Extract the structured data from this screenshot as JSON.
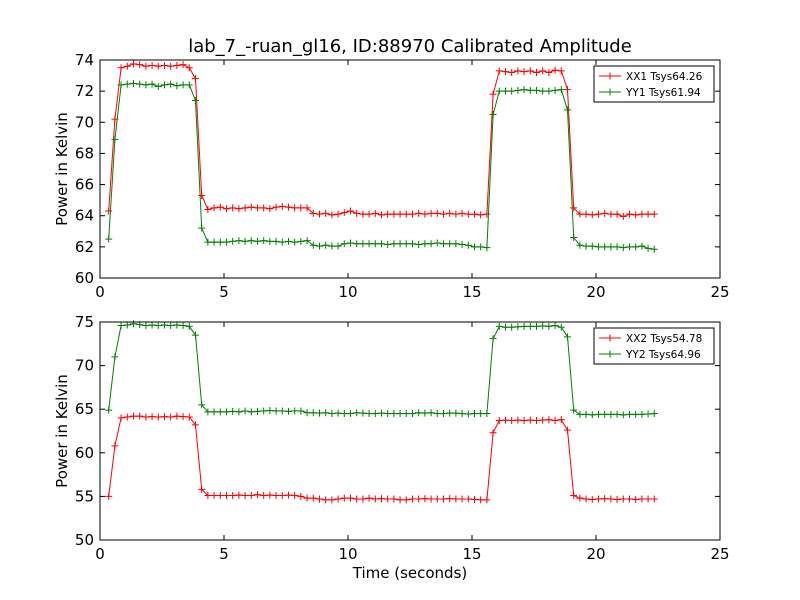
{
  "title": "lab_7_-ruan_gl16, ID:88970 Calibrated Amplitude",
  "chart_data": [
    {
      "type": "line",
      "ylabel": "Power in Kelvin",
      "xlabel": "",
      "xlim": [
        0,
        25
      ],
      "ylim": [
        60,
        74
      ],
      "xticks": [
        0,
        5,
        10,
        15,
        20,
        25
      ],
      "yticks": [
        60,
        62,
        64,
        66,
        68,
        70,
        72,
        74
      ],
      "grid": false,
      "legend_position": "top-right",
      "x": [
        0.35,
        0.6,
        0.85,
        1.1,
        1.35,
        1.6,
        1.85,
        2.1,
        2.35,
        2.6,
        2.85,
        3.1,
        3.35,
        3.6,
        3.85,
        4.1,
        4.35,
        4.6,
        4.85,
        5.1,
        5.35,
        5.6,
        5.85,
        6.1,
        6.35,
        6.6,
        6.85,
        7.1,
        7.35,
        7.6,
        7.85,
        8.1,
        8.35,
        8.6,
        8.85,
        9.1,
        9.35,
        9.6,
        9.85,
        10.1,
        10.35,
        10.6,
        10.85,
        11.1,
        11.35,
        11.6,
        11.85,
        12.1,
        12.35,
        12.6,
        12.85,
        13.1,
        13.35,
        13.6,
        13.85,
        14.1,
        14.35,
        14.6,
        14.85,
        15.1,
        15.35,
        15.6,
        15.85,
        16.1,
        16.35,
        16.6,
        16.85,
        17.1,
        17.35,
        17.6,
        17.85,
        18.1,
        18.35,
        18.6,
        18.85,
        19.1,
        19.35,
        19.6,
        19.85,
        20.1,
        20.35,
        20.6,
        20.85,
        21.1,
        21.35,
        21.6,
        21.85,
        22.1,
        22.35
      ],
      "series": [
        {
          "name": "XX1 Tsys64.26",
          "color": "#ff0000",
          "values": [
            64.3,
            70.2,
            73.5,
            73.6,
            73.75,
            73.7,
            73.6,
            73.65,
            73.6,
            73.65,
            73.6,
            73.65,
            73.7,
            73.5,
            72.8,
            65.3,
            64.4,
            64.5,
            64.55,
            64.45,
            64.5,
            64.45,
            64.5,
            64.55,
            64.5,
            64.5,
            64.45,
            64.55,
            64.6,
            64.55,
            64.5,
            64.5,
            64.5,
            64.15,
            64.1,
            64.15,
            64.05,
            64.1,
            64.2,
            64.3,
            64.15,
            64.1,
            64.1,
            64.15,
            64.05,
            64.1,
            64.1,
            64.1,
            64.1,
            64.1,
            64.15,
            64.1,
            64.15,
            64.15,
            64.1,
            64.15,
            64.1,
            64.15,
            64.1,
            64.1,
            64.05,
            64.1,
            71.8,
            73.3,
            73.25,
            73.2,
            73.3,
            73.25,
            73.3,
            73.2,
            73.3,
            73.2,
            73.35,
            73.3,
            72.1,
            64.5,
            64.1,
            64.1,
            64.05,
            64.1,
            64.15,
            64.1,
            64.1,
            63.95,
            64.1,
            64.05,
            64.1,
            64.1,
            64.1
          ]
        },
        {
          "name": "YY1 Tsys61.94",
          "color": "#008000",
          "values": [
            62.5,
            68.9,
            72.4,
            72.45,
            72.5,
            72.45,
            72.4,
            72.45,
            72.3,
            72.4,
            72.45,
            72.35,
            72.4,
            72.4,
            71.4,
            63.2,
            62.3,
            62.3,
            62.3,
            62.3,
            62.35,
            62.4,
            62.35,
            62.4,
            62.35,
            62.4,
            62.35,
            62.35,
            62.3,
            62.35,
            62.3,
            62.35,
            62.4,
            62.1,
            62.05,
            62.1,
            62.05,
            62.05,
            62.2,
            62.25,
            62.2,
            62.2,
            62.2,
            62.2,
            62.2,
            62.15,
            62.2,
            62.2,
            62.2,
            62.2,
            62.15,
            62.2,
            62.2,
            62.25,
            62.2,
            62.2,
            62.2,
            62.15,
            62.1,
            62.0,
            62.0,
            61.95,
            70.5,
            72.0,
            72.0,
            72.0,
            72.05,
            72.1,
            72.05,
            72.05,
            72.0,
            72.0,
            72.05,
            72.1,
            70.8,
            62.6,
            62.1,
            62.05,
            62.05,
            62.0,
            62.0,
            62.0,
            62.0,
            61.95,
            62.0,
            62.0,
            62.05,
            61.9,
            61.85
          ]
        }
      ]
    },
    {
      "type": "line",
      "ylabel": "Power in Kelvin",
      "xlabel": "Time (seconds)",
      "xlim": [
        0,
        25
      ],
      "ylim": [
        50,
        75
      ],
      "xticks": [
        0,
        5,
        10,
        15,
        20,
        25
      ],
      "yticks": [
        50,
        55,
        60,
        65,
        70,
        75
      ],
      "grid": false,
      "legend_position": "top-right",
      "x": [
        0.35,
        0.6,
        0.85,
        1.1,
        1.35,
        1.6,
        1.85,
        2.1,
        2.35,
        2.6,
        2.85,
        3.1,
        3.35,
        3.6,
        3.85,
        4.1,
        4.35,
        4.6,
        4.85,
        5.1,
        5.35,
        5.6,
        5.85,
        6.1,
        6.35,
        6.6,
        6.85,
        7.1,
        7.35,
        7.6,
        7.85,
        8.1,
        8.35,
        8.6,
        8.85,
        9.1,
        9.35,
        9.6,
        9.85,
        10.1,
        10.35,
        10.6,
        10.85,
        11.1,
        11.35,
        11.6,
        11.85,
        12.1,
        12.35,
        12.6,
        12.85,
        13.1,
        13.35,
        13.6,
        13.85,
        14.1,
        14.35,
        14.6,
        14.85,
        15.1,
        15.35,
        15.6,
        15.85,
        16.1,
        16.35,
        16.6,
        16.85,
        17.1,
        17.35,
        17.6,
        17.85,
        18.1,
        18.35,
        18.6,
        18.85,
        19.1,
        19.35,
        19.6,
        19.85,
        20.1,
        20.35,
        20.6,
        20.85,
        21.1,
        21.35,
        21.6,
        21.85,
        22.1,
        22.35
      ],
      "series": [
        {
          "name": "XX2 Tsys54.78",
          "color": "#ff0000",
          "values": [
            55.0,
            60.8,
            64.0,
            64.1,
            64.2,
            64.2,
            64.1,
            64.15,
            64.1,
            64.15,
            64.1,
            64.2,
            64.15,
            64.1,
            63.2,
            55.8,
            55.1,
            55.1,
            55.1,
            55.1,
            55.1,
            55.15,
            55.1,
            55.1,
            55.2,
            55.1,
            55.15,
            55.1,
            55.1,
            55.15,
            55.1,
            55.0,
            54.8,
            54.8,
            54.7,
            54.6,
            54.6,
            54.7,
            54.8,
            54.8,
            54.7,
            54.7,
            54.8,
            54.7,
            54.75,
            54.7,
            54.7,
            54.6,
            54.6,
            54.7,
            54.7,
            54.75,
            54.7,
            54.7,
            54.7,
            54.75,
            54.7,
            54.7,
            54.7,
            54.65,
            54.6,
            54.6,
            62.3,
            63.7,
            63.75,
            63.7,
            63.75,
            63.7,
            63.75,
            63.7,
            63.75,
            63.8,
            63.7,
            63.8,
            62.6,
            55.1,
            54.8,
            54.7,
            54.65,
            54.7,
            54.75,
            54.7,
            54.65,
            54.7,
            54.7,
            54.65,
            54.7,
            54.7,
            54.7
          ]
        },
        {
          "name": "YY2 Tsys64.96",
          "color": "#008000",
          "values": [
            64.9,
            71.0,
            74.6,
            74.65,
            74.8,
            74.7,
            74.6,
            74.65,
            74.6,
            74.65,
            74.6,
            74.65,
            74.6,
            74.5,
            73.5,
            65.5,
            64.7,
            64.7,
            64.7,
            64.7,
            64.75,
            64.7,
            64.8,
            64.7,
            64.75,
            64.8,
            64.85,
            64.8,
            64.8,
            64.75,
            64.8,
            64.8,
            64.6,
            64.6,
            64.55,
            64.6,
            64.5,
            64.55,
            64.5,
            64.5,
            64.6,
            64.55,
            64.5,
            64.5,
            64.55,
            64.5,
            64.5,
            64.5,
            64.5,
            64.5,
            64.6,
            64.55,
            64.6,
            64.5,
            64.5,
            64.55,
            64.55,
            64.5,
            64.45,
            64.5,
            64.5,
            64.5,
            73.1,
            74.5,
            74.4,
            74.4,
            74.45,
            74.5,
            74.5,
            74.5,
            74.55,
            74.5,
            74.6,
            74.4,
            73.3,
            64.9,
            64.4,
            64.4,
            64.35,
            64.4,
            64.4,
            64.4,
            64.4,
            64.35,
            64.4,
            64.4,
            64.4,
            64.45,
            64.5
          ]
        }
      ]
    }
  ]
}
